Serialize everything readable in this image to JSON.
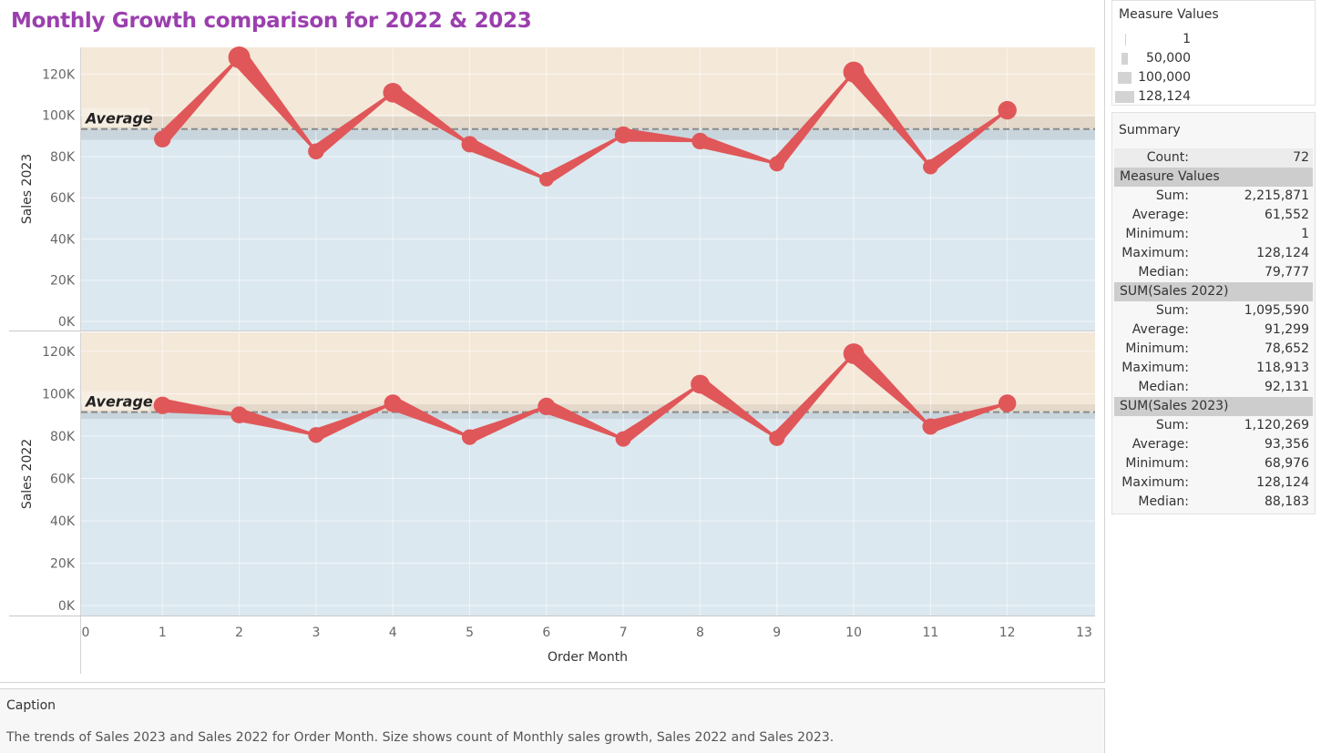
{
  "title": "Monthly Growth comparison for 2022 & 2023",
  "legend": {
    "title": "Measure Values",
    "items": [
      {
        "label": "1",
        "value": 1
      },
      {
        "label": "50,000",
        "value": 50000
      },
      {
        "label": "100,000",
        "value": 100000
      },
      {
        "label": "128,124",
        "value": 128124
      }
    ]
  },
  "summary": {
    "title": "Summary",
    "count_label": "Count:",
    "count_value": "72",
    "sections": [
      {
        "name": "Measure Values",
        "stats": [
          {
            "label": "Sum:",
            "value": "2,215,871"
          },
          {
            "label": "Average:",
            "value": "61,552"
          },
          {
            "label": "Minimum:",
            "value": "1"
          },
          {
            "label": "Maximum:",
            "value": "128,124"
          },
          {
            "label": "Median:",
            "value": "79,777"
          }
        ]
      },
      {
        "name": "SUM(Sales 2022)",
        "stats": [
          {
            "label": "Sum:",
            "value": "1,095,590"
          },
          {
            "label": "Average:",
            "value": "91,299"
          },
          {
            "label": "Minimum:",
            "value": "78,652"
          },
          {
            "label": "Maximum:",
            "value": "118,913"
          },
          {
            "label": "Median:",
            "value": "92,131"
          }
        ]
      },
      {
        "name": "SUM(Sales 2023)",
        "stats": [
          {
            "label": "Sum:",
            "value": "1,120,269"
          },
          {
            "label": "Average:",
            "value": "93,356"
          },
          {
            "label": "Minimum:",
            "value": "68,976"
          },
          {
            "label": "Maximum:",
            "value": "128,124"
          },
          {
            "label": "Median:",
            "value": "88,183"
          }
        ]
      }
    ]
  },
  "caption": {
    "title": "Caption",
    "text": "The trends of Sales 2023 and Sales 2022 for Order Month.  Size shows count of Monthly sales growth, Sales 2022 and Sales 2023."
  },
  "chart_data": {
    "type": "line",
    "xlabel": "Order Month",
    "x": [
      1,
      2,
      3,
      4,
      5,
      6,
      7,
      8,
      9,
      10,
      11,
      12
    ],
    "xlim": [
      0,
      13
    ],
    "xticks": [
      "0",
      "1",
      "2",
      "3",
      "4",
      "5",
      "6",
      "7",
      "8",
      "9",
      "10",
      "11",
      "12",
      "13"
    ],
    "line_color": "#e05759",
    "panels": [
      {
        "ylabel": "Sales 2023",
        "ylim": [
          0,
          133000
        ],
        "yticks": [
          {
            "v": 0,
            "label": "0K"
          },
          {
            "v": 20000,
            "label": "20K"
          },
          {
            "v": 40000,
            "label": "40K"
          },
          {
            "v": 60000,
            "label": "60K"
          },
          {
            "v": 80000,
            "label": "80K"
          },
          {
            "v": 100000,
            "label": "100K"
          },
          {
            "v": 120000,
            "label": "120K"
          }
        ],
        "values": [
          88500,
          128124,
          82500,
          111000,
          86000,
          68976,
          90500,
          87500,
          76500,
          121000,
          75000,
          102500
        ],
        "average": 93356,
        "average_label": "Average",
        "band_low": 88000,
        "band_high": 99500,
        "band_colors": {
          "upper": "#f4e8d9",
          "band": "#e3d8c9",
          "band_lower": "#c8d5dd",
          "lower": "#dce8ef"
        }
      },
      {
        "ylabel": "Sales 2022",
        "ylim": [
          0,
          129000
        ],
        "yticks": [
          {
            "v": 0,
            "label": "0K"
          },
          {
            "v": 20000,
            "label": "20K"
          },
          {
            "v": 40000,
            "label": "40K"
          },
          {
            "v": 60000,
            "label": "60K"
          },
          {
            "v": 80000,
            "label": "80K"
          },
          {
            "v": 100000,
            "label": "100K"
          },
          {
            "v": 120000,
            "label": "120K"
          }
        ],
        "values": [
          94500,
          90000,
          80500,
          95500,
          79500,
          94000,
          78652,
          104500,
          79000,
          118913,
          84500,
          95500
        ],
        "average": 91299,
        "average_label": "Average",
        "band_low": 88000,
        "band_high": 95000,
        "band_colors": {
          "upper": "#f4e8d9",
          "band": "#e3d8c9",
          "band_lower": "#c8d5dd",
          "lower": "#dce8ef"
        }
      }
    ]
  }
}
